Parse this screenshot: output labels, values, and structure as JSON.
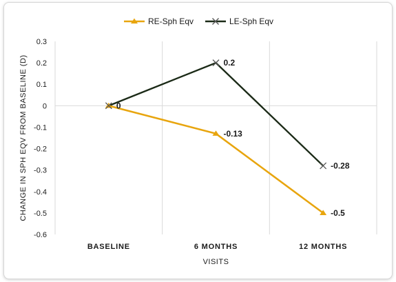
{
  "chart_data": {
    "type": "line",
    "xlabel": "VISITS",
    "ylabel": "CHANGE IN SPH EQV FROM BASELINE (D)",
    "categories": [
      "BASELINE",
      "6 MONTHS",
      "12 MONTHS"
    ],
    "ylim": [
      -0.6,
      0.3
    ],
    "yticks": [
      "0.3",
      "0.2",
      "0.1",
      "0",
      "-0.1",
      "-0.2",
      "-0.3",
      "-0.4",
      "-0.5",
      "-0.6"
    ],
    "grid": true,
    "legend_position": "top",
    "series": [
      {
        "name": "RE-Sph Eqv",
        "values": [
          0,
          -0.13,
          -0.5
        ],
        "color": "#E8A50E",
        "marker": "triangle",
        "data_labels": [
          "",
          "-0.13",
          "-0.5"
        ]
      },
      {
        "name": "LE-Sph Eqv",
        "values": [
          0,
          0.2,
          -0.28
        ],
        "color": "#1B2A17",
        "marker": "x",
        "data_labels": [
          "0",
          "0.2",
          "-0.28"
        ]
      }
    ]
  }
}
